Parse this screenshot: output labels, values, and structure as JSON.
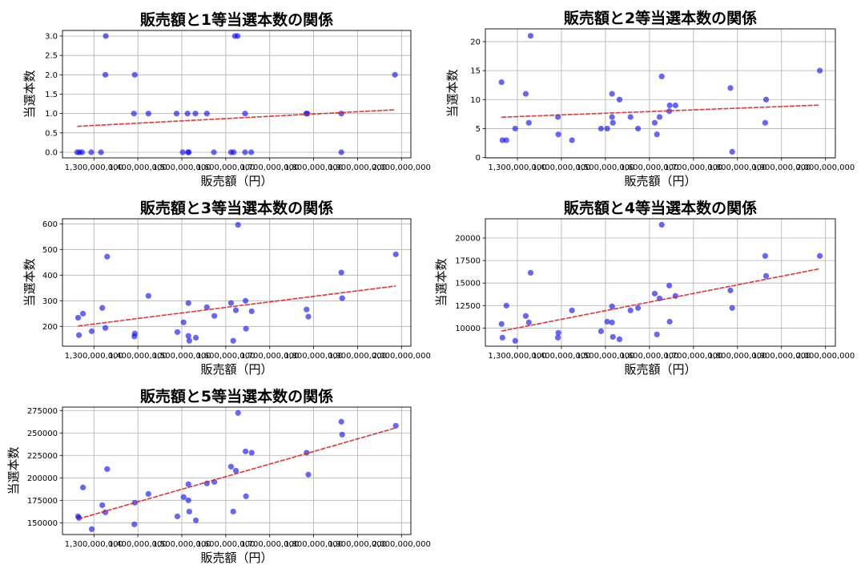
{
  "chart_data": [
    {
      "type": "scatter",
      "title": "販売額と1等当選本数の関係",
      "xlabel": "販売額（円）",
      "ylabel": "当選本数",
      "grid": true,
      "trendline": true,
      "xlim": [
        1228400000,
        2021300000
      ],
      "ylim": [
        -0.145,
        3.145
      ],
      "xticks": [
        1300000000,
        1400000000,
        1500000000,
        1600000000,
        1700000000,
        1800000000,
        1900000000,
        2000000000
      ],
      "xtick_labels": [
        "1,300,000,000",
        "1,400,000,000",
        "1,500,000,000",
        "1,600,000,000",
        "1,700,000,000",
        "1,800,000,000",
        "1,900,000,000",
        "2,000,000,000"
      ],
      "yticks": [
        0,
        0.5,
        1,
        1.5,
        2,
        2.5,
        3
      ],
      "ytick_labels": [
        "0.0",
        "0.5",
        "1.0",
        "1.5",
        "2.0",
        "2.5",
        "3.0"
      ],
      "x": [
        1262000000,
        1267000000,
        1273000000,
        1294000000,
        1316000000,
        1326000000,
        1327000000,
        1391000000,
        1393000000,
        1424000000,
        1488000000,
        1502000000,
        1513000000,
        1514000000,
        1516000000,
        1531000000,
        1557000000,
        1573000000,
        1612000000,
        1618000000,
        1621000000,
        1627000000,
        1644000000,
        1644000000,
        1658000000,
        1783000000,
        1786000000,
        1863000000,
        1863000000,
        1985000000
      ],
      "y": [
        0,
        0,
        0,
        0,
        0,
        2,
        3,
        1,
        2,
        1,
        1,
        0,
        1,
        0,
        0,
        1,
        1,
        0,
        0,
        0,
        3,
        3,
        1,
        0,
        0,
        1,
        1,
        1,
        0,
        2
      ]
    },
    {
      "type": "scatter",
      "title": "販売額と2等当選本数の関係",
      "xlabel": "販売額（円）",
      "ylabel": "当選本数",
      "grid": true,
      "trendline": true,
      "xlim": [
        1227200000,
        2022400000
      ],
      "ylim": [
        -0.05,
        22.2
      ],
      "xticks": [
        1300000000,
        1400000000,
        1500000000,
        1600000000,
        1700000000,
        1800000000,
        1900000000,
        2000000000
      ],
      "xtick_labels": [
        "1,300,000,000",
        "1,400,000,000",
        "1,500,000,000",
        "1,600,000,000",
        "1,700,000,000",
        "1,800,000,000",
        "1,900,000,000",
        "2,000,000,000"
      ],
      "yticks": [
        0,
        5,
        10,
        15,
        20
      ],
      "ytick_labels": [
        "0",
        "5",
        "10",
        "15",
        "20"
      ],
      "x": [
        1264000000,
        1266000000,
        1275000000,
        1295000000,
        1319000000,
        1326000000,
        1330000000,
        1392000000,
        1393000000,
        1424000000,
        1490000000,
        1504000000,
        1515000000,
        1515000000,
        1517000000,
        1532000000,
        1557000000,
        1574000000,
        1612000000,
        1617000000,
        1623000000,
        1628000000,
        1645000000,
        1646000000,
        1659000000,
        1784000000,
        1788000000,
        1863000000,
        1865000000,
        1987000000
      ],
      "y": [
        13,
        3,
        3,
        5,
        11,
        6,
        21,
        7,
        4,
        3,
        5,
        5,
        11,
        7,
        6,
        10,
        7,
        5,
        6,
        4,
        7,
        14,
        8,
        9,
        9,
        12,
        1,
        6,
        10,
        15
      ]
    },
    {
      "type": "scatter",
      "title": "販売額と3等当選本数の関係",
      "xlabel": "販売額（円）",
      "ylabel": "当選本数",
      "grid": true,
      "trendline": true,
      "xlim": [
        1228400000,
        2021300000
      ],
      "ylim": [
        122.8,
        619.7
      ],
      "xticks": [
        1300000000,
        1400000000,
        1500000000,
        1600000000,
        1700000000,
        1800000000,
        1900000000,
        2000000000
      ],
      "xtick_labels": [
        "1,300,000,000",
        "1,400,000,000",
        "1,500,000,000",
        "1,600,000,000",
        "1,700,000,000",
        "1,800,000,000",
        "1,900,000,000",
        "2,000,000,000"
      ],
      "yticks": [
        200,
        300,
        400,
        500,
        600
      ],
      "ytick_labels": [
        "200",
        "300",
        "400",
        "500",
        "600"
      ],
      "x": [
        1264000000,
        1266000000,
        1275000000,
        1295000000,
        1319000000,
        1326000000,
        1330000000,
        1392000000,
        1393000000,
        1424000000,
        1490000000,
        1504000000,
        1515000000,
        1515000000,
        1517000000,
        1532000000,
        1557000000,
        1574000000,
        1612000000,
        1617000000,
        1623000000,
        1628000000,
        1645000000,
        1646000000,
        1659000000,
        1784000000,
        1788000000,
        1863000000,
        1865000000,
        1987000000
      ],
      "y": [
        234,
        166,
        250,
        181,
        272,
        194,
        472,
        161,
        172,
        319,
        178,
        216,
        291,
        163,
        144,
        156,
        275,
        241,
        291,
        144,
        263,
        596,
        300,
        191,
        259,
        266,
        238,
        410,
        310,
        481
      ]
    },
    {
      "type": "scatter",
      "title": "販売額と4等当選本数の関係",
      "xlabel": "販売額（円）",
      "ylabel": "当選本数",
      "grid": true,
      "trendline": true,
      "xlim": [
        1227200000,
        2022400000
      ],
      "ylim": [
        7982,
        22140
      ],
      "xticks": [
        1300000000,
        1400000000,
        1500000000,
        1600000000,
        1700000000,
        1800000000,
        1900000000,
        2000000000
      ],
      "xtick_labels": [
        "1,300,000,000",
        "1,400,000,000",
        "1,500,000,000",
        "1,600,000,000",
        "1,700,000,000",
        "1,800,000,000",
        "1,900,000,000",
        "2,000,000,000"
      ],
      "yticks": [
        10000,
        12500,
        15000,
        17500,
        20000
      ],
      "ytick_labels": [
        "10000",
        "12500",
        "15000",
        "17500",
        "20000"
      ],
      "x": [
        1264000000,
        1266000000,
        1275000000,
        1295000000,
        1319000000,
        1326000000,
        1330000000,
        1392000000,
        1393000000,
        1424000000,
        1490000000,
        1504000000,
        1515000000,
        1515000000,
        1517000000,
        1532000000,
        1557000000,
        1574000000,
        1612000000,
        1617000000,
        1623000000,
        1628000000,
        1645000000,
        1646000000,
        1659000000,
        1784000000,
        1788000000,
        1863000000,
        1865000000,
        1987000000
      ],
      "y": [
        10450,
        8930,
        12490,
        8580,
        11340,
        10620,
        16140,
        8930,
        9470,
        11960,
        9640,
        10710,
        12400,
        10620,
        9020,
        8750,
        11960,
        12230,
        13830,
        9290,
        13290,
        21480,
        14720,
        10710,
        13560,
        14180,
        12230,
        18010,
        15790,
        18010
      ]
    },
    {
      "type": "scatter",
      "title": "販売額と5等当選本数の関係",
      "xlabel": "販売額（円）",
      "ylabel": "当選本数",
      "grid": true,
      "trendline": true,
      "xlim": [
        1228400000,
        2021300000
      ],
      "ylim": [
        136900,
        278800
      ],
      "xticks": [
        1300000000,
        1400000000,
        1500000000,
        1600000000,
        1700000000,
        1800000000,
        1900000000,
        2000000000
      ],
      "xtick_labels": [
        "1,300,000,000",
        "1,400,000,000",
        "1,500,000,000",
        "1,600,000,000",
        "1,700,000,000",
        "1,800,000,000",
        "1,900,000,000",
        "2,000,000,000"
      ],
      "yticks": [
        150000,
        175000,
        200000,
        225000,
        250000,
        275000
      ],
      "ytick_labels": [
        "150000",
        "175000",
        "200000",
        "225000",
        "250000",
        "275000"
      ],
      "x": [
        1264000000,
        1266000000,
        1275000000,
        1295000000,
        1319000000,
        1326000000,
        1330000000,
        1392000000,
        1393000000,
        1424000000,
        1490000000,
        1504000000,
        1515000000,
        1515000000,
        1517000000,
        1532000000,
        1557000000,
        1574000000,
        1612000000,
        1617000000,
        1623000000,
        1628000000,
        1645000000,
        1646000000,
        1659000000,
        1784000000,
        1788000000,
        1863000000,
        1865000000,
        1987000000
      ],
      "y": [
        157100,
        155400,
        189300,
        142900,
        169600,
        161600,
        209800,
        148200,
        172300,
        182100,
        157100,
        178600,
        192900,
        175000,
        162500,
        152700,
        193800,
        195500,
        212500,
        162500,
        208000,
        272300,
        229500,
        179500,
        228000,
        228000,
        203600,
        262500,
        248200,
        258000
      ]
    }
  ],
  "colors": {
    "points": "#0000ff",
    "trendline": "#e02020",
    "grid": "#b0b0b0"
  }
}
